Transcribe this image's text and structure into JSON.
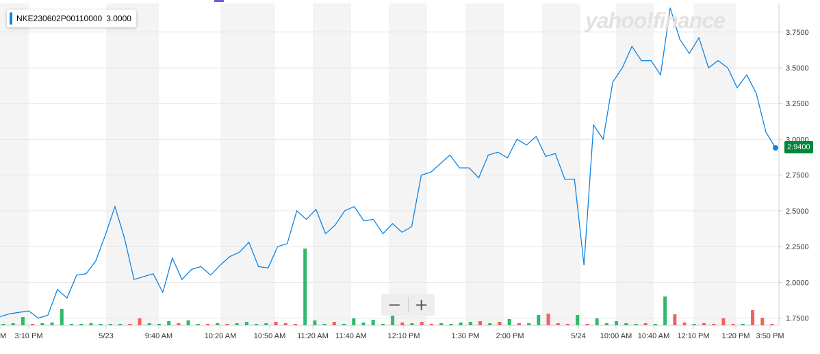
{
  "legend": {
    "symbol": "NKE230602P00110000",
    "value": "3.0000"
  },
  "last_price_label": "2.9400",
  "watermark": "yahoo!finance",
  "zoom": {
    "minus_label": "−",
    "plus_label": "+"
  },
  "colors": {
    "line": "#0c84e4",
    "up": "#2fba6b",
    "down": "#f0625e",
    "badge": "#00873c",
    "band": "#f4f4f4"
  },
  "chart_data": {
    "type": "line",
    "title": "NKE230602P00110000",
    "ylim": [
      1.7,
      3.95
    ],
    "y_ticks": [
      "1.7500",
      "2.0000",
      "2.2500",
      "2.5000",
      "2.7500",
      "3.0000",
      "3.2500",
      "3.5000",
      "3.7500"
    ],
    "x_labels": [
      "M",
      "3:10 PM",
      "5/23",
      "9:40 AM",
      "10:20 AM",
      "10:50 AM",
      "11:20 AM",
      "11:40 AM",
      "12:10 PM",
      "1:30 PM",
      "2:00 PM",
      "5/24",
      "10:00 AM",
      "10:40 AM",
      "12:10 PM",
      "1:20 PM",
      "3:50 PM"
    ],
    "price": [
      1.76,
      1.78,
      1.79,
      1.8,
      1.75,
      1.77,
      1.95,
      1.89,
      2.05,
      2.06,
      2.15,
      2.33,
      2.53,
      2.31,
      2.02,
      2.04,
      2.06,
      1.93,
      2.17,
      2.02,
      2.09,
      2.11,
      2.05,
      2.12,
      2.18,
      2.21,
      2.28,
      2.11,
      2.1,
      2.25,
      2.27,
      2.5,
      2.44,
      2.51,
      2.34,
      2.4,
      2.5,
      2.53,
      2.43,
      2.44,
      2.34,
      2.41,
      2.35,
      2.39,
      2.75,
      2.77,
      2.83,
      2.89,
      2.8,
      2.8,
      2.73,
      2.89,
      2.91,
      2.87,
      3.0,
      2.96,
      3.02,
      2.88,
      2.9,
      2.72,
      2.72,
      2.12,
      3.1,
      3.0,
      3.4,
      3.5,
      3.65,
      3.55,
      3.55,
      3.45,
      3.92,
      3.7,
      3.6,
      3.71,
      3.5,
      3.55,
      3.5,
      3.36,
      3.45,
      3.32,
      3.05,
      2.94
    ],
    "volume": [
      {
        "v": 2,
        "up": true
      },
      {
        "v": 3,
        "up": true
      },
      {
        "v": 12,
        "up": true
      },
      {
        "v": 2,
        "up": false
      },
      {
        "v": 3,
        "up": true
      },
      {
        "v": 4,
        "up": true
      },
      {
        "v": 24,
        "up": true
      },
      {
        "v": 2,
        "up": true
      },
      {
        "v": 2,
        "up": true
      },
      {
        "v": 3,
        "up": true
      },
      {
        "v": 2,
        "up": true
      },
      {
        "v": 2,
        "up": true
      },
      {
        "v": 2,
        "up": true
      },
      {
        "v": 2,
        "up": false
      },
      {
        "v": 10,
        "up": false
      },
      {
        "v": 3,
        "up": true
      },
      {
        "v": 2,
        "up": true
      },
      {
        "v": 6,
        "up": true
      },
      {
        "v": 3,
        "up": false
      },
      {
        "v": 7,
        "up": true
      },
      {
        "v": 2,
        "up": true
      },
      {
        "v": 2,
        "up": false
      },
      {
        "v": 3,
        "up": true
      },
      {
        "v": 2,
        "up": false
      },
      {
        "v": 3,
        "up": true
      },
      {
        "v": 5,
        "up": true
      },
      {
        "v": 2,
        "up": true
      },
      {
        "v": 3,
        "up": true
      },
      {
        "v": 5,
        "up": false
      },
      {
        "v": 3,
        "up": false
      },
      {
        "v": 2,
        "up": false
      },
      {
        "v": 112,
        "up": true
      },
      {
        "v": 7,
        "up": true
      },
      {
        "v": 2,
        "up": true
      },
      {
        "v": 5,
        "up": false
      },
      {
        "v": 2,
        "up": true
      },
      {
        "v": 10,
        "up": true
      },
      {
        "v": 4,
        "up": true
      },
      {
        "v": 8,
        "up": true
      },
      {
        "v": 2,
        "up": true
      },
      {
        "v": 18,
        "up": true
      },
      {
        "v": 4,
        "up": false
      },
      {
        "v": 3,
        "up": true
      },
      {
        "v": 5,
        "up": false
      },
      {
        "v": 2,
        "up": false
      },
      {
        "v": 3,
        "up": true
      },
      {
        "v": 2,
        "up": true
      },
      {
        "v": 4,
        "up": true
      },
      {
        "v": 5,
        "up": true
      },
      {
        "v": 6,
        "up": false
      },
      {
        "v": 3,
        "up": true
      },
      {
        "v": 5,
        "up": false
      },
      {
        "v": 9,
        "up": true
      },
      {
        "v": 3,
        "up": false
      },
      {
        "v": 3,
        "up": true
      },
      {
        "v": 15,
        "up": true
      },
      {
        "v": 17,
        "up": false
      },
      {
        "v": 3,
        "up": false
      },
      {
        "v": 2,
        "up": false
      },
      {
        "v": 15,
        "up": true
      },
      {
        "v": 2,
        "up": false
      },
      {
        "v": 10,
        "up": true
      },
      {
        "v": 3,
        "up": true
      },
      {
        "v": 6,
        "up": true
      },
      {
        "v": 3,
        "up": true
      },
      {
        "v": 2,
        "up": true
      },
      {
        "v": 3,
        "up": false
      },
      {
        "v": 2,
        "up": true
      },
      {
        "v": 42,
        "up": true
      },
      {
        "v": 16,
        "up": false
      },
      {
        "v": 4,
        "up": false
      },
      {
        "v": 2,
        "up": true
      },
      {
        "v": 3,
        "up": false
      },
      {
        "v": 2,
        "up": false
      },
      {
        "v": 10,
        "up": false
      },
      {
        "v": 2,
        "up": false
      },
      {
        "v": 2,
        "up": true
      },
      {
        "v": 22,
        "up": false
      },
      {
        "v": 11,
        "up": false
      },
      {
        "v": 2,
        "up": false
      }
    ]
  }
}
